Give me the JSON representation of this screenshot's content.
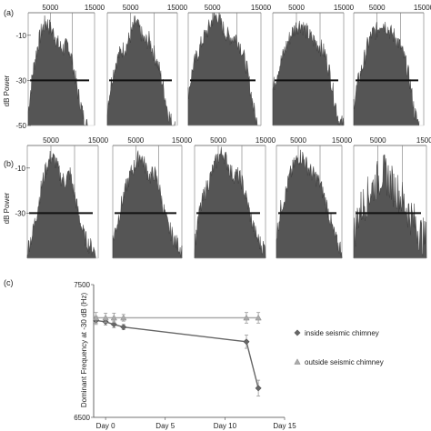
{
  "chart_data": [
    {
      "panel": "(a)",
      "type": "area",
      "ylabel": "dB Power",
      "xticks": [
        5000,
        15000
      ],
      "yticks": [
        -10,
        -30,
        -50
      ],
      "threshold_db": -30,
      "axis_frame": "top",
      "x": [
        0,
        1000,
        2000,
        3000,
        4000,
        5000,
        6000,
        7000,
        8000,
        9000,
        10000,
        11000,
        12000,
        13000,
        14000,
        15000
      ],
      "spectra": [
        {
          "y": [
            -44,
            -27,
            -16,
            -8,
            -4,
            -7,
            -10,
            -15,
            -16,
            -14,
            -22,
            -33,
            -42,
            -50,
            -50,
            -50
          ],
          "xmax": 13500
        },
        {
          "y": [
            -42,
            -29,
            -21,
            -17,
            -15,
            -10,
            -4,
            -8,
            -13,
            -12,
            -18,
            -24,
            -33,
            -44,
            -50,
            -50
          ],
          "xmax": 14500
        },
        {
          "y": [
            -36,
            -24,
            -18,
            -12,
            -8,
            -3,
            -1,
            -6,
            -10,
            -11,
            -11,
            -16,
            -24,
            -36,
            -48,
            -50
          ],
          "xmax": 15000
        },
        {
          "y": [
            -34,
            -26,
            -20,
            -14,
            -9,
            -6,
            -5,
            -8,
            -11,
            -13,
            -15,
            -18,
            -26,
            -38,
            -48,
            -50
          ],
          "xmax": 15000
        },
        {
          "y": [
            -40,
            -30,
            -23,
            -14,
            -9,
            -8,
            -4,
            -6,
            -9,
            -11,
            -15,
            -21,
            -30,
            -44,
            -50,
            -50
          ],
          "xmax": 14000
        }
      ]
    },
    {
      "panel": "(b)",
      "type": "area",
      "ylabel": "dB Power",
      "xticks": [
        5000,
        15000
      ],
      "yticks": [
        -10,
        -30
      ],
      "threshold_db": -30,
      "axis_frame": "top",
      "x": [
        0,
        1000,
        2000,
        3000,
        4000,
        5000,
        6000,
        7000,
        8000,
        9000,
        10000,
        11000,
        12000,
        13000,
        14000,
        15000
      ],
      "spectra": [
        {
          "y": [
            -46,
            -40,
            -30,
            -18,
            -10,
            -5,
            -7,
            -14,
            -16,
            -12,
            -22,
            -32,
            -40,
            -44,
            -46,
            -48
          ],
          "xmax": 14500
        },
        {
          "y": [
            -42,
            -34,
            -25,
            -18,
            -12,
            -8,
            -4,
            -9,
            -14,
            -12,
            -18,
            -28,
            -36,
            -40,
            -44,
            -46
          ],
          "xmax": 15000
        },
        {
          "y": [
            -44,
            -30,
            -22,
            -16,
            -10,
            -5,
            -3,
            -8,
            -13,
            -13,
            -16,
            -24,
            -33,
            -40,
            -44,
            -46
          ],
          "xmax": 15000
        },
        {
          "y": [
            -40,
            -28,
            -22,
            -14,
            -9,
            -5,
            -5,
            -9,
            -12,
            -14,
            -17,
            -23,
            -30,
            -38,
            -44,
            -46
          ],
          "xmax": 15000
        },
        {
          "y": [
            -40,
            -30,
            -26,
            -22,
            -18,
            -15,
            -12,
            -14,
            -18,
            -20,
            -24,
            -28,
            -32,
            -36,
            -40,
            -42
          ],
          "xmax": 15000,
          "jagged": true
        }
      ]
    },
    {
      "panel": "(c)",
      "type": "line",
      "ylabel": "Dominant Frequency at -30 dB (Hz)",
      "xticks": [
        "Day 0",
        "Day 5",
        "Day 10",
        "Day 15"
      ],
      "xtick_values": [
        0,
        5,
        10,
        15
      ],
      "xlim": [
        -1,
        15
      ],
      "yticks": [
        "7500",
        "6500"
      ],
      "ylim": [
        6500,
        7500
      ],
      "grid": false,
      "legend_position": "right",
      "series": [
        {
          "name": "inside seismic chimney",
          "marker": "diamond",
          "color": "#666666",
          "x": [
            -0.8,
            0,
            0.7,
            1.5,
            11.8,
            12.8
          ],
          "y": [
            7230,
            7220,
            7200,
            7180,
            7070,
            6720
          ],
          "err": [
            30,
            25,
            25,
            20,
            50,
            60
          ]
        },
        {
          "name": "outside seismic chimney",
          "marker": "triangle",
          "color": "#aaaaaa",
          "x": [
            -0.8,
            0,
            0.7,
            1.5,
            11.8,
            12.8
          ],
          "y": [
            7250,
            7250,
            7250,
            7250,
            7250,
            7250
          ],
          "err": [
            40,
            35,
            35,
            25,
            40,
            40
          ]
        }
      ]
    }
  ]
}
